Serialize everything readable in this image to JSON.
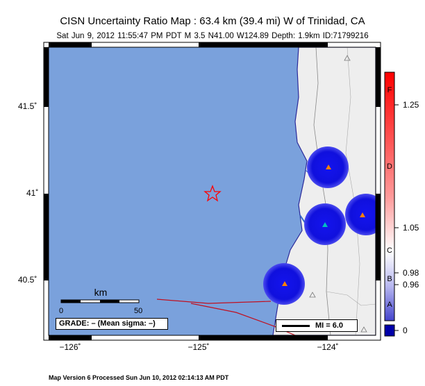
{
  "title": "CISN Uncertainty Ratio Map : 63.4 km (39.4 mi) W of Trinidad, CA",
  "subtitle": "Sat Jun  9, 2012 11:55:47 PM PDT    M 3.5    N41.00 W124.89    Depth: 1.9km    ID:71799216",
  "footer": "Map Version 6 Processed Sun Jun 10, 2012 02:14:13 AM PDT",
  "y_ticks": [
    "41.5˚",
    "41˚",
    "40.5˚"
  ],
  "x_ticks": [
    "−126˚",
    "−125˚",
    "−124˚"
  ],
  "scale_bar": {
    "title": "km",
    "labels": [
      "0",
      "50"
    ]
  },
  "grade_label": "GRADE: – (Mean sigma: –)",
  "mi_legend": "MI = 6.0",
  "colorbar": {
    "letters": [
      "F",
      "D",
      "C",
      "B",
      "A"
    ],
    "values": [
      "1.25",
      "1.05",
      "0.98",
      "0.96",
      "0"
    ]
  },
  "colors": {
    "ocean": "#7aa1dc",
    "land": "#eeeeee",
    "coast": "#2a2a9a",
    "uncertainty_disc": "#1010dd",
    "epicenter_star": "#ff0000",
    "fault": "#c01020",
    "colorbar_top": "#ff0000",
    "colorbar_bottom": "#0000aa"
  },
  "epicenter": {
    "marker": "star-icon",
    "lat": 41.0,
    "lon": -124.89
  },
  "stations": [
    {
      "marker": "triangle-icon",
      "color": "#ff8000"
    },
    {
      "marker": "triangle-icon",
      "color": "#ff8000"
    },
    {
      "marker": "triangle-icon",
      "color": "#00c0c0"
    },
    {
      "marker": "triangle-icon",
      "color": "#ff8000"
    }
  ]
}
